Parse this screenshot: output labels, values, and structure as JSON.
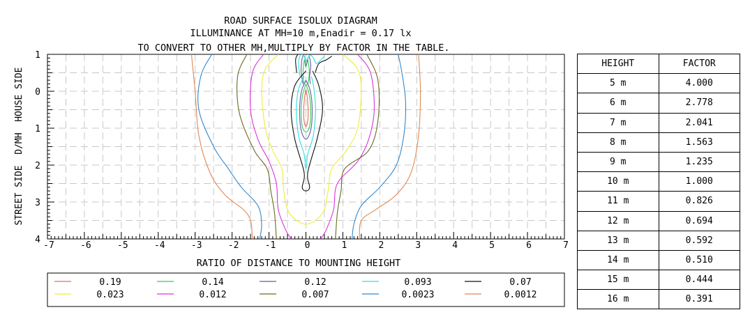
{
  "chart_data": {
    "type": "contour",
    "title_lines": [
      "ROAD SURFACE ISOLUX DIAGRAM",
      "ILLUMINANCE AT MH=10 m,Enadir  = 0.17 lx",
      "TO CONVERT TO OTHER MH,MULTIPLY BY FACTOR IN THE TABLE."
    ],
    "xlabel": "RATIO OF DISTANCE TO MOUNTING HEIGHT",
    "ylabel": "STREET SIDE  D/MH  HOUSE SIDE",
    "xlim": [
      -7,
      7
    ],
    "ylim": [
      -1,
      4
    ],
    "x_ticks": [
      "-7",
      "-6",
      "-5",
      "-4",
      "-3",
      "-2",
      "-1",
      "0",
      "1",
      "2",
      "3",
      "4",
      "5",
      "6",
      "7"
    ],
    "y_ticks": [
      {
        "value": -1,
        "label": "1"
      },
      {
        "value": 0,
        "label": "0"
      },
      {
        "value": 1,
        "label": "1"
      },
      {
        "value": 2,
        "label": "2"
      },
      {
        "value": 3,
        "label": "3"
      },
      {
        "value": 4,
        "label": "4"
      }
    ],
    "grid": true,
    "legend_position": "bottom",
    "series": [
      {
        "name": "0.19",
        "color": "#e07060",
        "curves": [
          [
            [
              0,
              -0.05
            ],
            [
              -0.04,
              0.2
            ],
            [
              -0.06,
              0.5
            ],
            [
              -0.05,
              0.8
            ],
            [
              0,
              0.95
            ],
            [
              0.05,
              0.8
            ],
            [
              0.06,
              0.5
            ],
            [
              0.04,
              0.2
            ],
            [
              0,
              -0.05
            ]
          ]
        ]
      },
      {
        "name": "0.14",
        "color": "#33cc55",
        "curves": [
          [
            [
              0,
              -0.2
            ],
            [
              -0.09,
              0.1
            ],
            [
              -0.13,
              0.5
            ],
            [
              -0.1,
              0.95
            ],
            [
              0,
              1.1
            ],
            [
              0.1,
              0.95
            ],
            [
              0.13,
              0.5
            ],
            [
              0.09,
              0.1
            ],
            [
              0,
              -0.2
            ]
          ],
          [
            [
              -0.05,
              -0.15
            ],
            [
              -0.08,
              -0.5
            ],
            [
              -0.04,
              -0.85
            ],
            [
              0,
              -0.65
            ],
            [
              0.05,
              -0.85
            ],
            [
              0.09,
              -0.5
            ],
            [
              0.05,
              -0.15
            ]
          ]
        ]
      },
      {
        "name": "0.12",
        "color": "#6a5aa8",
        "curves": [
          [
            [
              0,
              -0.3
            ],
            [
              -0.12,
              0.0
            ],
            [
              -0.17,
              0.5
            ],
            [
              -0.13,
              1.05
            ],
            [
              0,
              1.3
            ],
            [
              0.13,
              1.05
            ],
            [
              0.17,
              0.5
            ],
            [
              0.12,
              0.0
            ],
            [
              0,
              -0.3
            ]
          ],
          [
            [
              -0.08,
              -0.2
            ],
            [
              -0.13,
              -0.55
            ],
            [
              -0.1,
              -0.9
            ],
            [
              -0.04,
              -0.95
            ],
            [
              0,
              -0.7
            ],
            [
              0.08,
              -0.95
            ],
            [
              0.13,
              -0.7
            ],
            [
              0.1,
              -0.4
            ],
            [
              0.12,
              -0.2
            ]
          ]
        ]
      },
      {
        "name": "0.093",
        "color": "#33dddd",
        "curves": [
          [
            [
              -0.05,
              -0.4
            ],
            [
              -0.2,
              -0.05
            ],
            [
              -0.26,
              0.5
            ],
            [
              -0.2,
              1.2
            ],
            [
              -0.05,
              1.7
            ],
            [
              0,
              2.1
            ],
            [
              0.05,
              1.7
            ],
            [
              0.2,
              1.2
            ],
            [
              0.26,
              0.5
            ],
            [
              0.22,
              -0.05
            ],
            [
              0.15,
              -0.4
            ]
          ],
          [
            [
              -0.16,
              -0.4
            ],
            [
              -0.2,
              -0.75
            ],
            [
              -0.15,
              -0.98
            ],
            [
              -0.05,
              -0.95
            ],
            [
              0,
              -0.8
            ],
            [
              0.1,
              -0.98
            ],
            [
              0.2,
              -0.9
            ],
            [
              0.28,
              -0.75
            ],
            [
              0.4,
              -0.85
            ],
            [
              0.5,
              -0.95
            ]
          ]
        ]
      },
      {
        "name": "0.07",
        "color": "#111111",
        "curves": [
          [
            [
              0,
              -0.55
            ],
            [
              -0.3,
              -0.15
            ],
            [
              -0.4,
              0.5
            ],
            [
              -0.3,
              1.3
            ],
            [
              -0.05,
              2.2
            ],
            [
              -0.1,
              2.6
            ],
            [
              0,
              2.7
            ],
            [
              0.1,
              2.6
            ],
            [
              0.05,
              2.2
            ],
            [
              0.3,
              1.3
            ],
            [
              0.45,
              0.5
            ],
            [
              0.35,
              -0.15
            ],
            [
              0.18,
              -0.55
            ]
          ],
          [
            [
              -0.25,
              -0.5
            ],
            [
              -0.28,
              -0.85
            ],
            [
              -0.22,
              -1.0
            ]
          ],
          [
            [
              0.25,
              -0.5
            ],
            [
              0.35,
              -0.75
            ],
            [
              0.55,
              -0.85
            ],
            [
              0.7,
              -0.95
            ]
          ]
        ]
      },
      {
        "name": "0.023",
        "color": "#eeee33",
        "curves": [
          [
            [
              -0.75,
              -1
            ],
            [
              -1.1,
              -0.6
            ],
            [
              -1.2,
              0
            ],
            [
              -1.1,
              1
            ],
            [
              -0.9,
              1.6
            ],
            [
              -0.65,
              2.1
            ],
            [
              -0.6,
              2.7
            ],
            [
              -0.45,
              3.3
            ],
            [
              0,
              3.6
            ],
            [
              0.45,
              3.3
            ],
            [
              0.6,
              2.7
            ],
            [
              0.7,
              2.1
            ],
            [
              1.1,
              1.6
            ],
            [
              1.4,
              1
            ],
            [
              1.5,
              0
            ],
            [
              1.4,
              -0.6
            ],
            [
              1,
              -1
            ]
          ]
        ]
      },
      {
        "name": "0.012",
        "color": "#dd33dd",
        "curves": [
          [
            [
              -1.15,
              -1
            ],
            [
              -1.45,
              -0.5
            ],
            [
              -1.5,
              0.5
            ],
            [
              -1.3,
              1.3
            ],
            [
              -1,
              1.9
            ],
            [
              -0.8,
              2.5
            ],
            [
              -0.75,
              3.2
            ],
            [
              -0.55,
              3.75
            ],
            [
              -0.4,
              4
            ]
          ],
          [
            [
              0.4,
              4
            ],
            [
              0.55,
              3.75
            ],
            [
              0.75,
              3.2
            ],
            [
              0.85,
              2.5
            ],
            [
              1.4,
              1.9
            ],
            [
              1.7,
              1.3
            ],
            [
              1.85,
              0.5
            ],
            [
              1.75,
              -0.5
            ],
            [
              1.4,
              -1
            ]
          ]
        ]
      },
      {
        "name": "0.007",
        "color": "#6b6b22",
        "curves": [
          [
            [
              -1.6,
              -1
            ],
            [
              -1.85,
              -0.4
            ],
            [
              -1.8,
              0.6
            ],
            [
              -1.4,
              1.6
            ],
            [
              -1.05,
              2.1
            ],
            [
              -0.95,
              2.7
            ],
            [
              -0.85,
              3.3
            ],
            [
              -0.8,
              4
            ]
          ],
          [
            [
              0.8,
              4
            ],
            [
              0.85,
              3.3
            ],
            [
              0.95,
              2.7
            ],
            [
              1.05,
              2.1
            ],
            [
              1.7,
              1.6
            ],
            [
              1.95,
              0.8
            ],
            [
              1.95,
              -0.3
            ],
            [
              1.65,
              -1
            ]
          ]
        ]
      },
      {
        "name": "0.0023",
        "color": "#3388cc",
        "curves": [
          [
            [
              -2.55,
              -1
            ],
            [
              -2.85,
              -0.4
            ],
            [
              -2.9,
              0.5
            ],
            [
              -2.5,
              1.5
            ],
            [
              -2.1,
              2.1
            ],
            [
              -1.75,
              2.6
            ],
            [
              -1.3,
              3.1
            ],
            [
              -1.2,
              3.6
            ],
            [
              -1.25,
              4
            ]
          ],
          [
            [
              1.25,
              4
            ],
            [
              1.3,
              3.6
            ],
            [
              1.5,
              3.1
            ],
            [
              2.0,
              2.6
            ],
            [
              2.45,
              2.0
            ],
            [
              2.65,
              1.2
            ],
            [
              2.7,
              0.3
            ],
            [
              2.6,
              -0.5
            ],
            [
              2.5,
              -1
            ]
          ]
        ]
      },
      {
        "name": "0.0012",
        "color": "#e08855",
        "curves": [
          [
            [
              -3.1,
              -1
            ],
            [
              -3.0,
              0.0
            ],
            [
              -2.9,
              1.2
            ],
            [
              -2.6,
              2.2
            ],
            [
              -2.2,
              2.8
            ],
            [
              -1.7,
              3.2
            ],
            [
              -1.5,
              3.5
            ],
            [
              -1.45,
              4
            ]
          ],
          [
            [
              1.45,
              4
            ],
            [
              1.5,
              3.5
            ],
            [
              1.9,
              3.2
            ],
            [
              2.45,
              2.8
            ],
            [
              2.85,
              2.2
            ],
            [
              3.05,
              1.2
            ],
            [
              3.1,
              0.0
            ],
            [
              3.05,
              -1
            ]
          ]
        ]
      }
    ]
  },
  "factor_table": {
    "headers": [
      "HEIGHT",
      "FACTOR"
    ],
    "rows": [
      [
        "5 m",
        "4.000"
      ],
      [
        "6 m",
        "2.778"
      ],
      [
        "7 m",
        "2.041"
      ],
      [
        "8 m",
        "1.563"
      ],
      [
        "9 m",
        "1.235"
      ],
      [
        "10 m",
        "1.000"
      ],
      [
        "11 m",
        "0.826"
      ],
      [
        "12 m",
        "0.694"
      ],
      [
        "13 m",
        "0.592"
      ],
      [
        "14 m",
        "0.510"
      ],
      [
        "15 m",
        "0.444"
      ],
      [
        "16 m",
        "0.391"
      ]
    ]
  }
}
